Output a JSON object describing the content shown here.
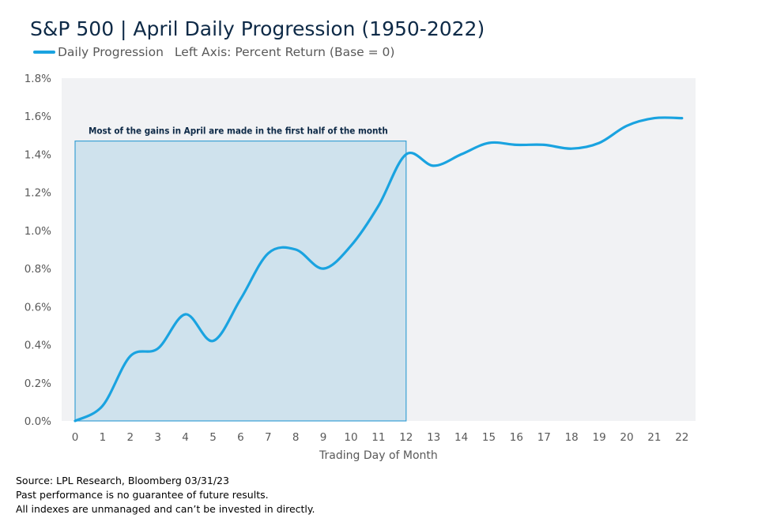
{
  "title": "S&P 500 | April Daily Progression (1950-2022)",
  "legend": {
    "series_label": "Daily Progression",
    "axis_note": "Left Axis: Percent Return (Base = 0)"
  },
  "colors": {
    "line": "#1aa3e0",
    "plot_background": "#f1f2f4",
    "highlight_fill": "#cfe2ed",
    "highlight_border": "#3aa0d4",
    "axis_text": "#595959",
    "annotation_text": "#0e2a47"
  },
  "chart_data": {
    "type": "line",
    "x": [
      0,
      1,
      2,
      3,
      4,
      5,
      6,
      7,
      8,
      9,
      10,
      11,
      12,
      13,
      14,
      15,
      16,
      17,
      18,
      19,
      20,
      21,
      22
    ],
    "series": [
      {
        "name": "Daily Progression",
        "values": [
          0.0,
          0.08,
          0.34,
          0.38,
          0.56,
          0.42,
          0.64,
          0.88,
          0.9,
          0.8,
          0.92,
          1.13,
          1.4,
          1.34,
          1.4,
          1.46,
          1.45,
          1.45,
          1.43,
          1.46,
          1.55,
          1.59,
          1.59
        ]
      }
    ],
    "xlabel": "Trading Day of Month",
    "ylabel": "",
    "xlim": [
      0,
      22
    ],
    "ylim": [
      0,
      1.8
    ],
    "yticks": [
      0,
      0.2,
      0.4,
      0.6,
      0.8,
      1.0,
      1.2,
      1.4,
      1.6,
      1.8
    ],
    "ytick_labels": [
      "0.0%",
      "0.2%",
      "0.4%",
      "0.6%",
      "0.8%",
      "1.0%",
      "1.2%",
      "1.4%",
      "1.6%",
      "1.8%"
    ],
    "xtick_labels": [
      "0",
      "1",
      "2",
      "3",
      "4",
      "5",
      "6",
      "7",
      "8",
      "9",
      "10",
      "11",
      "12",
      "13",
      "14",
      "15",
      "16",
      "17",
      "18",
      "19",
      "20",
      "21",
      "22"
    ],
    "grid": false,
    "legend_position": "top-left",
    "annotation": {
      "text": "Most of the gains in April are made in the first half of the month",
      "x_start": 0,
      "x_end": 12,
      "y_top": 1.47
    }
  },
  "footer": {
    "source": "Source: LPL Research, Bloomberg 03/31/23",
    "disclaimer_1": "Past performance is no guarantee of future results.",
    "disclaimer_2": "All indexes are unmanaged and can’t be invested in directly."
  }
}
